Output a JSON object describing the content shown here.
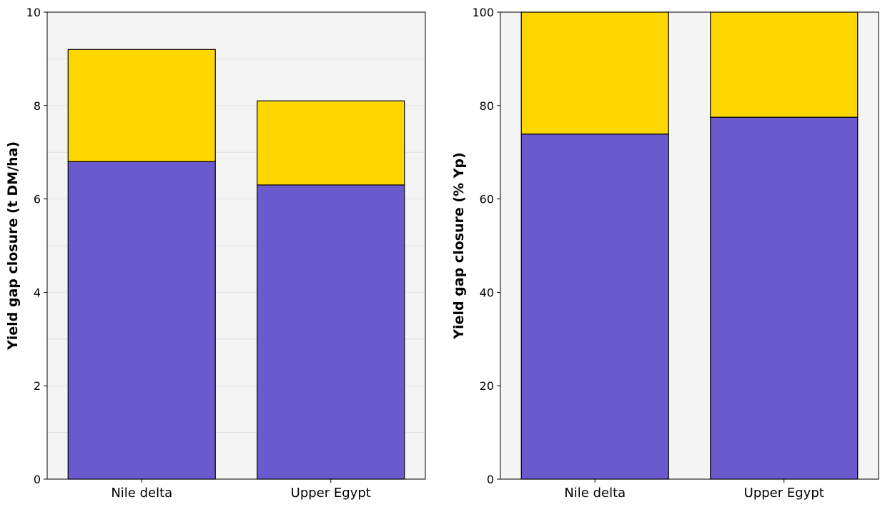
{
  "chart_data": [
    {
      "type": "bar",
      "stacked": true,
      "categories": [
        "Nile delta",
        "Upper Egypt"
      ],
      "series": [
        {
          "values": [
            6.8,
            6.3
          ],
          "color": "#6a5acd"
        },
        {
          "values": [
            2.4,
            1.8
          ],
          "color": "#ffd700"
        }
      ],
      "ylabel": "Yield gap closure (t DM/ha)",
      "ylim": [
        0,
        10
      ],
      "yticks": [
        "0",
        "2",
        "4",
        "6",
        "8",
        "10"
      ],
      "grid": "horizontal minor lines",
      "background": "#f4f4f4"
    },
    {
      "type": "bar",
      "stacked": true,
      "categories": [
        "Nile delta",
        "Upper Egypt"
      ],
      "series": [
        {
          "values": [
            73.9,
            77.5
          ],
          "color": "#6a5acd"
        },
        {
          "values": [
            26.1,
            22.5
          ],
          "color": "#ffd700"
        }
      ],
      "ylabel": "Yield gap closure (% Yp)",
      "ylim": [
        0,
        100
      ],
      "yticks": [
        "0",
        "20",
        "40",
        "60",
        "80",
        "100"
      ],
      "grid": "none",
      "background": "#f4f4f4"
    }
  ]
}
